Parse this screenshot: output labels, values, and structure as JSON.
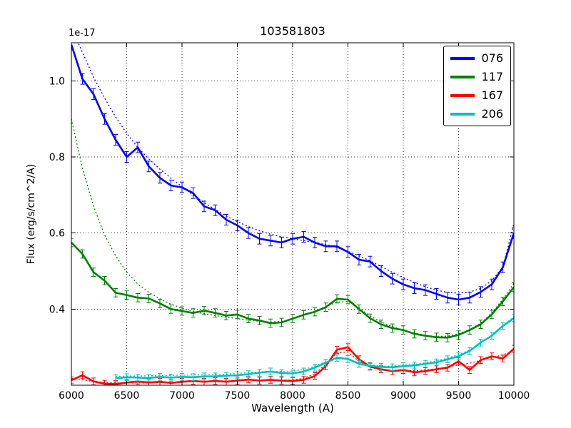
{
  "chart_data": {
    "type": "line",
    "title": "103581803",
    "xlabel": "Wavelength (A)",
    "ylabel": "Flux (erg/s/cm^2/A)",
    "offset_text": "1e-17",
    "xlim": [
      6000,
      10000
    ],
    "ylim": [
      0.2,
      1.1
    ],
    "xticks": [
      6000,
      6500,
      7000,
      7500,
      8000,
      8500,
      9000,
      9500,
      10000
    ],
    "yticks": [
      0.4,
      0.6,
      0.8,
      1.0
    ],
    "grid": true,
    "legend_position": "upper right",
    "x": [
      6000,
      6100,
      6200,
      6300,
      6400,
      6500,
      6600,
      6700,
      6800,
      6900,
      7000,
      7100,
      7200,
      7300,
      7400,
      7500,
      7600,
      7700,
      7800,
      7900,
      8000,
      8100,
      8200,
      8300,
      8400,
      8500,
      8600,
      8700,
      8800,
      8900,
      9000,
      9100,
      9200,
      9300,
      9400,
      9500,
      9600,
      9700,
      9800,
      9900,
      10000
    ],
    "series": [
      {
        "name": "076",
        "color": "#0000ff",
        "err": 0.014,
        "values": [
          1.095,
          1.005,
          0.965,
          0.9,
          0.845,
          0.8,
          0.825,
          0.775,
          0.745,
          0.725,
          0.72,
          0.705,
          0.67,
          0.66,
          0.635,
          0.62,
          0.6,
          0.585,
          0.58,
          0.575,
          0.585,
          0.59,
          0.575,
          0.565,
          0.565,
          0.55,
          0.53,
          0.525,
          0.5,
          0.48,
          0.465,
          0.455,
          0.45,
          0.44,
          0.43,
          0.425,
          0.43,
          0.445,
          0.465,
          0.51,
          0.6
        ],
        "model": [
          1.14,
          1.075,
          1.01,
          0.955,
          0.905,
          0.862,
          0.825,
          0.795,
          0.768,
          0.744,
          0.722,
          0.7,
          0.68,
          0.662,
          0.645,
          0.63,
          0.617,
          0.606,
          0.597,
          0.59,
          0.585,
          0.58,
          0.575,
          0.57,
          0.562,
          0.552,
          0.54,
          0.527,
          0.512,
          0.497,
          0.483,
          0.47,
          0.459,
          0.45,
          0.444,
          0.442,
          0.445,
          0.454,
          0.475,
          0.51,
          0.625
        ]
      },
      {
        "name": "117",
        "color": "#008000",
        "err": 0.011,
        "values": [
          0.575,
          0.545,
          0.497,
          0.475,
          0.443,
          0.437,
          0.43,
          0.428,
          0.415,
          0.4,
          0.395,
          0.39,
          0.396,
          0.39,
          0.383,
          0.386,
          0.375,
          0.37,
          0.363,
          0.365,
          0.375,
          0.385,
          0.393,
          0.405,
          0.427,
          0.425,
          0.4,
          0.376,
          0.36,
          0.35,
          0.345,
          0.335,
          0.33,
          0.326,
          0.325,
          0.332,
          0.345,
          0.36,
          0.386,
          0.42,
          0.458
        ],
        "model": [
          0.9,
          0.77,
          0.67,
          0.595,
          0.54,
          0.497,
          0.466,
          0.444,
          0.427,
          0.413,
          0.402,
          0.394,
          0.388,
          0.383,
          0.379,
          0.375,
          0.371,
          0.368,
          0.366,
          0.368,
          0.374,
          0.383,
          0.394,
          0.407,
          0.418,
          0.42,
          0.404,
          0.382,
          0.366,
          0.354,
          0.345,
          0.337,
          0.331,
          0.328,
          0.329,
          0.335,
          0.346,
          0.363,
          0.39,
          0.426,
          0.468
        ]
      },
      {
        "name": "167",
        "color": "#ff0000",
        "err": 0.009,
        "values": [
          0.213,
          0.226,
          0.21,
          0.204,
          0.203,
          0.207,
          0.21,
          0.207,
          0.209,
          0.206,
          0.209,
          0.211,
          0.209,
          0.211,
          0.209,
          0.212,
          0.215,
          0.212,
          0.214,
          0.212,
          0.211,
          0.214,
          0.224,
          0.25,
          0.293,
          0.3,
          0.268,
          0.249,
          0.242,
          0.237,
          0.24,
          0.234,
          0.237,
          0.242,
          0.246,
          0.263,
          0.24,
          0.266,
          0.276,
          0.27,
          0.296
        ],
        "model": [
          0.218,
          0.214,
          0.21,
          0.207,
          0.206,
          0.206,
          0.206,
          0.206,
          0.207,
          0.207,
          0.208,
          0.209,
          0.21,
          0.21,
          0.211,
          0.212,
          0.213,
          0.213,
          0.213,
          0.213,
          0.214,
          0.218,
          0.23,
          0.255,
          0.285,
          0.287,
          0.263,
          0.247,
          0.24,
          0.238,
          0.238,
          0.238,
          0.24,
          0.243,
          0.248,
          0.253,
          0.258,
          0.265,
          0.272,
          0.28,
          0.29
        ]
      },
      {
        "name": "206",
        "color": "#00bfbf",
        "err": 0.009,
        "values": [
          null,
          null,
          null,
          null,
          0.218,
          0.221,
          0.22,
          0.219,
          0.222,
          0.22,
          0.222,
          0.221,
          0.223,
          0.223,
          0.225,
          0.226,
          0.229,
          0.233,
          0.236,
          0.232,
          0.231,
          0.236,
          0.246,
          0.259,
          0.272,
          0.269,
          0.256,
          0.251,
          0.248,
          0.247,
          0.25,
          0.252,
          0.256,
          0.26,
          0.268,
          0.276,
          0.29,
          0.312,
          0.33,
          0.356,
          0.376
        ],
        "model": [
          null,
          null,
          null,
          null,
          0.223,
          0.224,
          0.224,
          0.225,
          0.225,
          0.226,
          0.226,
          0.227,
          0.227,
          0.228,
          0.229,
          0.231,
          0.233,
          0.235,
          0.236,
          0.236,
          0.237,
          0.241,
          0.25,
          0.262,
          0.27,
          0.268,
          0.259,
          0.253,
          0.25,
          0.25,
          0.252,
          0.255,
          0.259,
          0.264,
          0.271,
          0.28,
          0.293,
          0.31,
          0.332,
          0.357,
          0.38
        ]
      }
    ]
  }
}
